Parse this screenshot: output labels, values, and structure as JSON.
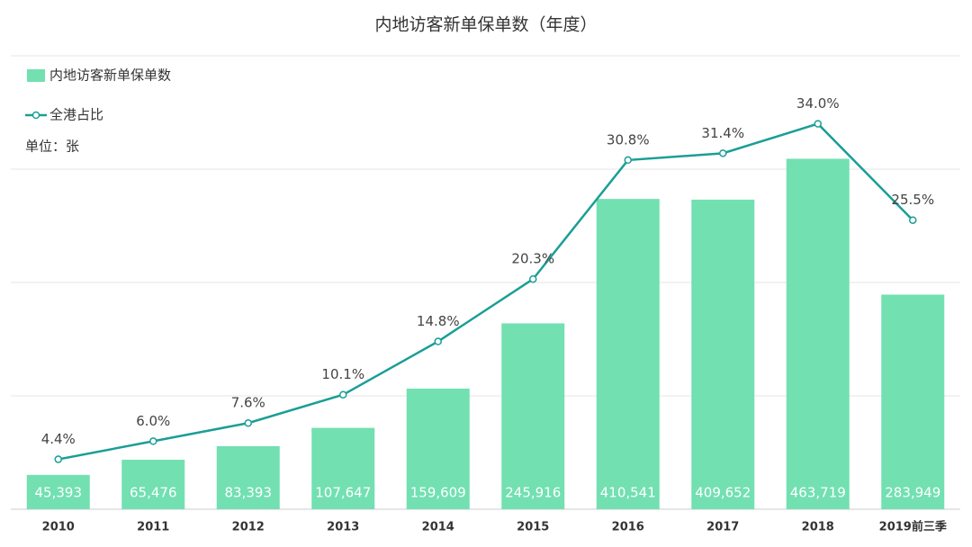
{
  "chart_data": {
    "type": "bar-line",
    "title": "内地访客新单保单数（年度）",
    "unit": "单位：张",
    "categories": [
      "2010",
      "2011",
      "2012",
      "2013",
      "2014",
      "2015",
      "2016",
      "2017",
      "2018",
      "2019前三季"
    ],
    "series": [
      {
        "name": "内地访客新单保单数",
        "type": "bar",
        "color": "#72e0b1",
        "values": [
          45393,
          65476,
          83393,
          107647,
          159609,
          245916,
          410541,
          409652,
          463719,
          283949
        ],
        "value_labels": [
          "45,393",
          "65,476",
          "83,393",
          "107,647",
          "159,609",
          "245,916",
          "410,541",
          "409,652",
          "463,719",
          "283,949"
        ]
      },
      {
        "name": "全港占比",
        "type": "line",
        "axis": "y2",
        "color": "#1a9e96",
        "values": [
          4.4,
          6.0,
          7.6,
          10.1,
          14.8,
          20.3,
          30.8,
          31.4,
          34.0,
          25.5
        ],
        "value_labels": [
          "4.4%",
          "6.0%",
          "7.6%",
          "10.1%",
          "14.8%",
          "20.3%",
          "30.8%",
          "31.4%",
          "34.0%",
          "25.5%"
        ]
      }
    ],
    "ylim": [
      0,
      600000
    ],
    "yticks": [
      0,
      150000,
      300000,
      450000,
      600000
    ],
    "y2lim": [
      0,
      40
    ],
    "grid": true
  }
}
